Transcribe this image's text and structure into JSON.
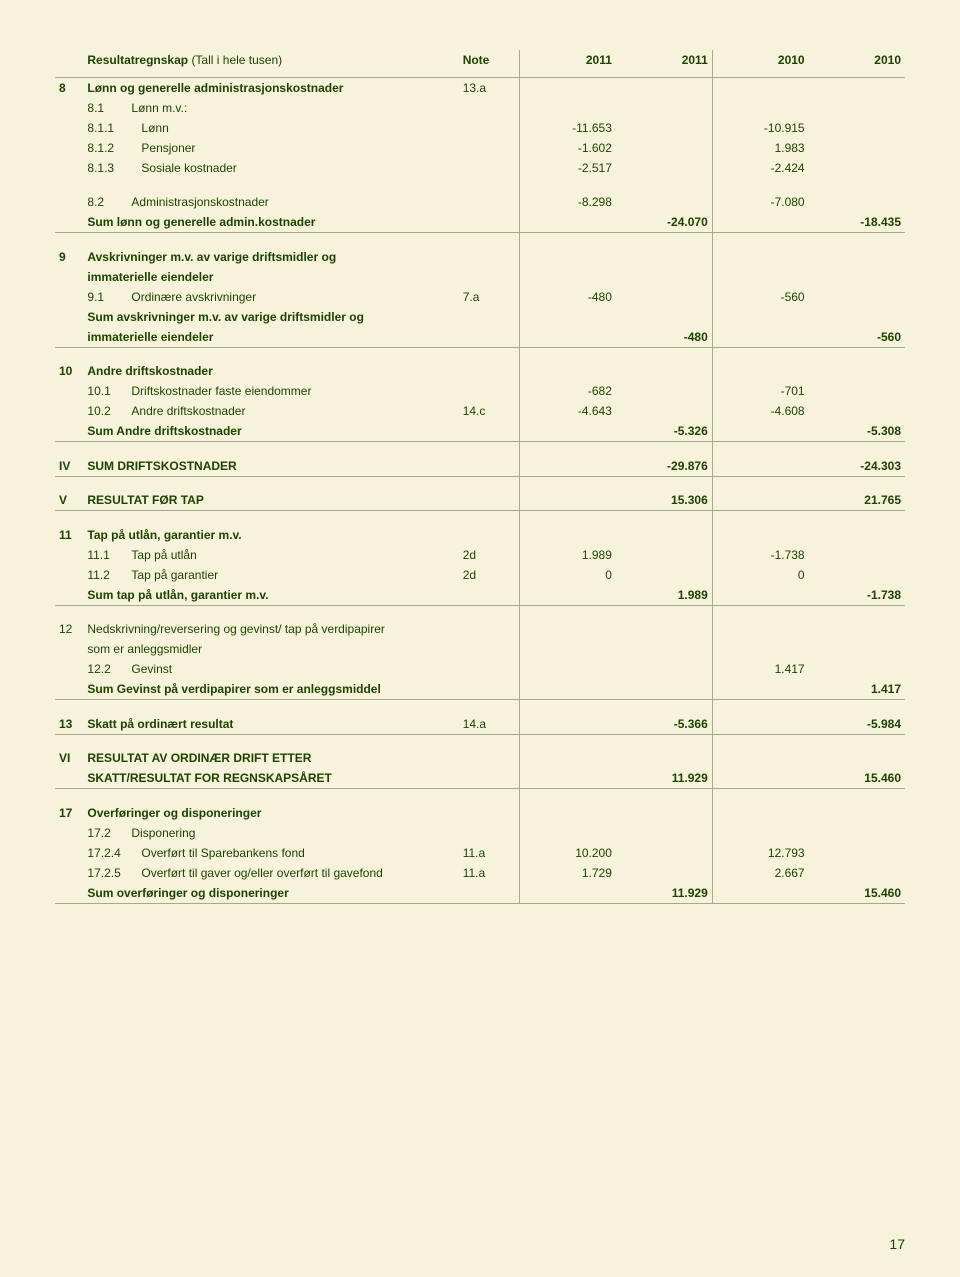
{
  "header": {
    "title_main": "Resultatregnskap",
    "title_paren": "(Tall i hele tusen)",
    "col_note": "Note",
    "col_y1a": "2011",
    "col_y1b": "2011",
    "col_y2a": "2010",
    "col_y2b": "2010"
  },
  "page_number": "17",
  "rows": [
    {
      "n": "8",
      "d": "Lønn og generelle administrasjonskostnader",
      "note": "13.a",
      "v1": "",
      "v2": "",
      "v3": "",
      "v4": "",
      "bold": true
    },
    {
      "n": "",
      "d_sub": "8.1",
      "d": "Lønn m.v.:",
      "note": "",
      "v1": "",
      "v2": "",
      "v3": "",
      "v4": ""
    },
    {
      "n": "",
      "d_sub": "8.1.1",
      "d": "Lønn",
      "note": "",
      "v1": "-11.653",
      "v2": "",
      "v3": "-10.915",
      "v4": ""
    },
    {
      "n": "",
      "d_sub": "8.1.2",
      "d": "Pensjoner",
      "note": "",
      "v1": "-1.602",
      "v2": "",
      "v3": "1.983",
      "v4": ""
    },
    {
      "n": "",
      "d_sub": "8.1.3",
      "d": "Sosiale kostnader",
      "note": "",
      "v1": "-2.517",
      "v2": "",
      "v3": "-2.424",
      "v4": ""
    },
    {
      "gap": true
    },
    {
      "n": "",
      "d_sub": "8.2",
      "d": "Administrasjonskostnader",
      "note": "",
      "v1": "-8.298",
      "v2": "",
      "v3": "-7.080",
      "v4": ""
    },
    {
      "n": "",
      "d": "Sum lønn og generelle admin.kostnader",
      "note": "",
      "v1": "",
      "v2": "-24.070",
      "v3": "",
      "v4": "-18.435",
      "bold": true,
      "bb": true
    },
    {
      "gap": true
    },
    {
      "n": "9",
      "d": "Avskrivninger m.v. av varige driftsmidler og",
      "note": "",
      "v1": "",
      "v2": "",
      "v3": "",
      "v4": "",
      "bold": true
    },
    {
      "n": "",
      "d": "immaterielle eiendeler",
      "note": "",
      "v1": "",
      "v2": "",
      "v3": "",
      "v4": "",
      "bold": true
    },
    {
      "n": "",
      "d_sub": "9.1",
      "d": "Ordinære avskrivninger",
      "note": "7.a",
      "v1": "-480",
      "v2": "",
      "v3": "-560",
      "v4": ""
    },
    {
      "n": "",
      "d": "Sum avskrivninger m.v. av varige driftsmidler og",
      "note": "",
      "v1": "",
      "v2": "",
      "v3": "",
      "v4": "",
      "bold": true
    },
    {
      "n": "",
      "d": "immaterielle eiendeler",
      "note": "",
      "v1": "",
      "v2": "-480",
      "v3": "",
      "v4": "-560",
      "bold": true,
      "bb": true
    },
    {
      "gap": true
    },
    {
      "n": "10",
      "d": "Andre driftskostnader",
      "note": "",
      "v1": "",
      "v2": "",
      "v3": "",
      "v4": "",
      "bold": true
    },
    {
      "n": "",
      "d_sub": "10.1",
      "d": "Driftskostnader faste eiendommer",
      "note": "",
      "v1": "-682",
      "v2": "",
      "v3": "-701",
      "v4": ""
    },
    {
      "n": "",
      "d_sub": "10.2",
      "d": "Andre driftskostnader",
      "note": "14.c",
      "v1": "-4.643",
      "v2": "",
      "v3": "-4.608",
      "v4": ""
    },
    {
      "n": "",
      "d": "Sum Andre driftskostnader",
      "note": "",
      "v1": "",
      "v2": "-5.326",
      "v3": "",
      "v4": "-5.308",
      "bold": true,
      "bb": true
    },
    {
      "gap": true
    },
    {
      "n": "IV",
      "d": "SUM DRIFTSKOSTNADER",
      "note": "",
      "v1": "",
      "v2": "-29.876",
      "v3": "",
      "v4": "-24.303",
      "bold": true,
      "bb": true
    },
    {
      "gap": true
    },
    {
      "n": "V",
      "d": "RESULTAT FØR TAP",
      "note": "",
      "v1": "",
      "v2": "15.306",
      "v3": "",
      "v4": "21.765",
      "bold": true,
      "bb": true
    },
    {
      "gap": true
    },
    {
      "n": "11",
      "d": "Tap på utlån, garantier m.v.",
      "note": "",
      "v1": "",
      "v2": "",
      "v3": "",
      "v4": "",
      "bold": true
    },
    {
      "n": "",
      "d_sub": "11.1",
      "d": "Tap på utlån",
      "note": "2d",
      "v1": "1.989",
      "v2": "",
      "v3": "-1.738",
      "v4": ""
    },
    {
      "n": "",
      "d_sub": "11.2",
      "d": "Tap på garantier",
      "note": "2d",
      "v1": "0",
      "v2": "",
      "v3": "0",
      "v4": ""
    },
    {
      "n": "",
      "d": "Sum tap på utlån, garantier m.v.",
      "note": "",
      "v1": "",
      "v2": "1.989",
      "v3": "",
      "v4": "-1.738",
      "bold": true,
      "bb": true
    },
    {
      "gap": true
    },
    {
      "n": "12",
      "d": "Nedskrivning/reversering og gevinst/ tap på verdipapirer",
      "note": "",
      "v1": "",
      "v2": "",
      "v3": "",
      "v4": ""
    },
    {
      "n": "",
      "d": "som er anleggsmidler",
      "note": "",
      "v1": "",
      "v2": "",
      "v3": "",
      "v4": ""
    },
    {
      "n": "",
      "d_sub": "12.2",
      "d": "Gevinst",
      "note": "",
      "v1": "",
      "v2": "",
      "v3": "1.417",
      "v4": ""
    },
    {
      "n": "",
      "d": "Sum Gevinst på verdipapirer som er anleggsmiddel",
      "note": "",
      "v1": "",
      "v2": "",
      "v3": "",
      "v4": "1.417",
      "bold": true,
      "bb": true
    },
    {
      "gap": true
    },
    {
      "n": "13",
      "d": "Skatt på ordinært resultat",
      "note": "14.a",
      "v1": "",
      "v2": "-5.366",
      "v3": "",
      "v4": "-5.984",
      "bold": true,
      "bb": true
    },
    {
      "gap": true
    },
    {
      "n": "VI",
      "d": "RESULTAT AV ORDINÆR DRIFT ETTER",
      "note": "",
      "v1": "",
      "v2": "",
      "v3": "",
      "v4": "",
      "bold": true
    },
    {
      "n": "",
      "d": "SKATT/RESULTAT FOR REGNSKAPSÅRET",
      "note": "",
      "v1": "",
      "v2": "11.929",
      "v3": "",
      "v4": "15.460",
      "bold": true,
      "bb": true
    },
    {
      "gap": true
    },
    {
      "n": "17",
      "d": "Overføringer og disponeringer",
      "note": "",
      "v1": "",
      "v2": "",
      "v3": "",
      "v4": "",
      "bold": true
    },
    {
      "n": "",
      "d_sub": "17.2",
      "d": "Disponering",
      "note": "",
      "v1": "",
      "v2": "",
      "v3": "",
      "v4": ""
    },
    {
      "n": "",
      "d_sub": "17.2.4",
      "d": "Overført til Sparebankens fond",
      "note": "11.a",
      "v1": "10.200",
      "v2": "",
      "v3": "12.793",
      "v4": ""
    },
    {
      "n": "",
      "d_sub": "17.2.5",
      "d": "Overført til gaver og/eller overført til gavefond",
      "note": "11.a",
      "v1": "1.729",
      "v2": "",
      "v3": "2.667",
      "v4": ""
    },
    {
      "n": "",
      "d": "Sum overføringer og disponeringer",
      "note": "",
      "v1": "",
      "v2": "11.929",
      "v3": "",
      "v4": "15.460",
      "bold": true,
      "bb": true
    }
  ]
}
